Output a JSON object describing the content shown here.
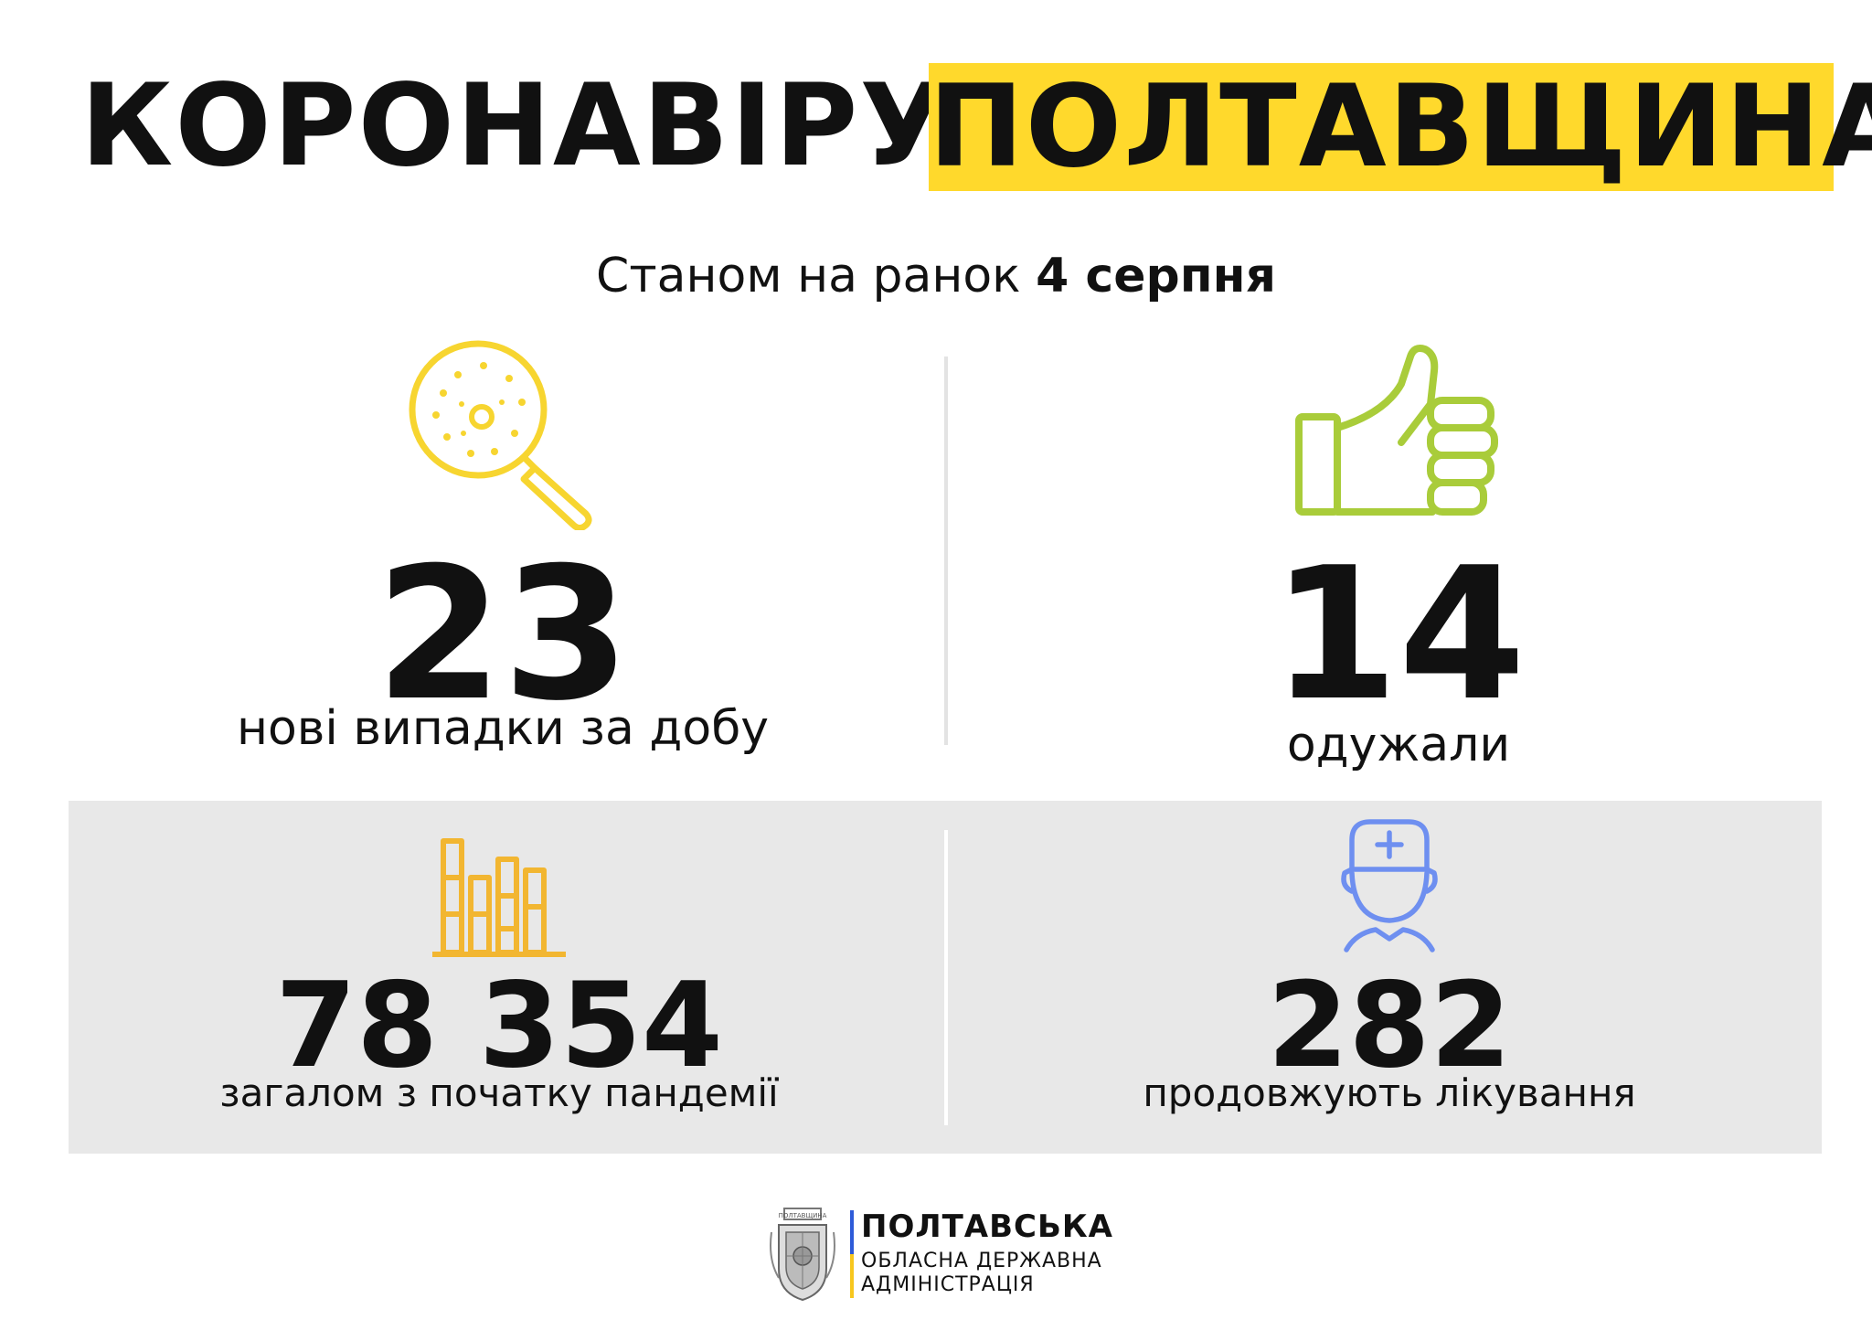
{
  "header": {
    "title_left": "КОРОНАВІРУС.",
    "title_right": "ПОЛТАВЩИНА"
  },
  "subtitle": {
    "prefix": "Станом на ранок",
    "date": "4 серпня"
  },
  "stats": [
    {
      "value": "23",
      "label": "нові випадки за добу",
      "icon": "magnifier-virus-icon"
    },
    {
      "value": "14",
      "label": "одужали",
      "icon": "thumbs-up-icon"
    },
    {
      "value": "78 354",
      "label": "загалом з початку пандемії",
      "icon": "bar-chart-icon"
    },
    {
      "value": "282",
      "label": "продовжують лікування",
      "icon": "doctor-icon"
    }
  ],
  "footer": {
    "seal_text": "ПОЛТАВЩИНА",
    "org_line1": "ПОЛТАВСЬКА",
    "org_line2": "ОБЛАСНА ДЕРЖАВНА",
    "org_line3": "АДМІНІСТРАЦІЯ"
  },
  "colors": {
    "accent_yellow": "#FFD92C",
    "virus_icon": "#F7D530",
    "thumb_icon": "#A9CC3A",
    "chart_icon": "#F2B631",
    "doctor_icon": "#6E8FF0",
    "panel_bg": "#E8E8E8"
  }
}
